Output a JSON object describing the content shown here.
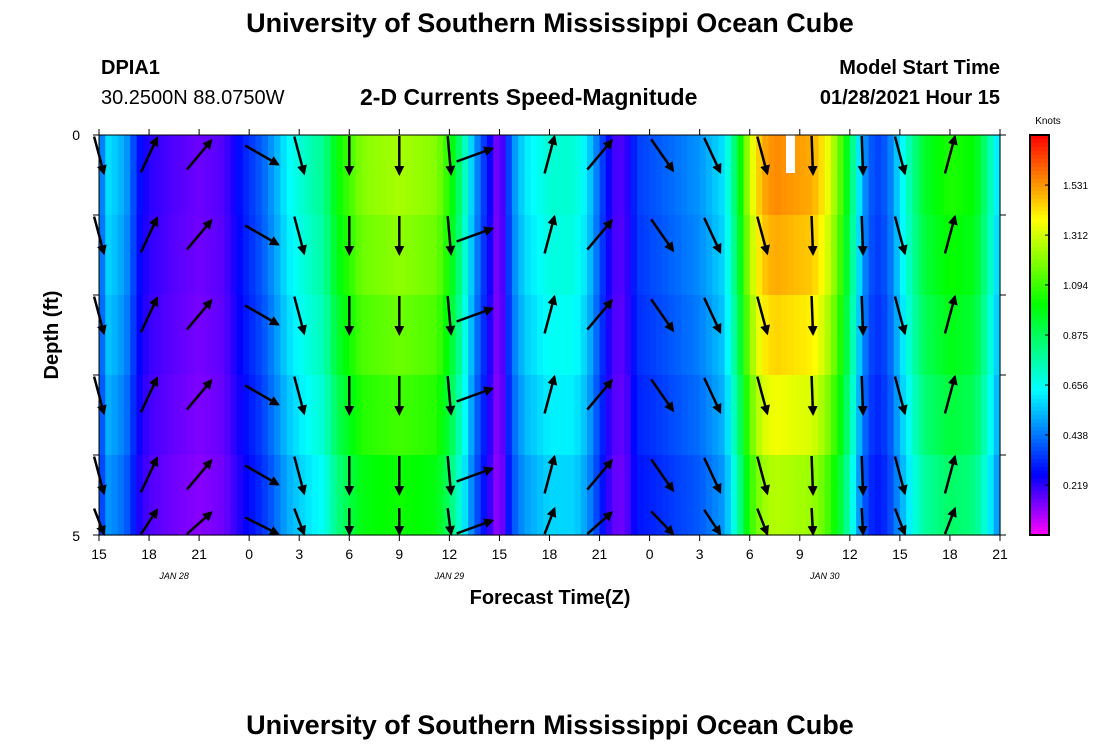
{
  "header": {
    "title_top": "University of Southern Mississippi Ocean Cube",
    "title_bottom": "University of Southern Mississippi Ocean Cube",
    "station_id": "DPIA1",
    "station_coords": "30.2500N 88.0750W",
    "model_label": "Model Start Time",
    "model_time": "01/28/2021 Hour 15"
  },
  "chart_data": {
    "type": "heatmap",
    "title": "2-D Currents Speed-Magnitude",
    "xlabel": "Forecast Time(Z)",
    "ylabel": "Depth (ft)",
    "x_hours": [
      0,
      72
    ],
    "ylim": [
      0,
      5
    ],
    "y_ticks": [
      "0",
      "5"
    ],
    "x_tick_labels": [
      "15",
      "18",
      "21",
      "0",
      "3",
      "6",
      "9",
      "12",
      "15",
      "18",
      "21",
      "0",
      "3",
      "6",
      "9",
      "12",
      "15",
      "18",
      "21"
    ],
    "date_labels": [
      {
        "text": "JAN 28",
        "hour": 6
      },
      {
        "text": "JAN 29",
        "hour": 28
      },
      {
        "text": "JAN 30",
        "hour": 58
      }
    ],
    "colorbar": {
      "title": "Knots",
      "range": [
        0,
        1.75
      ],
      "ticks": [
        1.531,
        1.312,
        1.094,
        0.875,
        0.656,
        0.438,
        0.219
      ],
      "tick_labels": [
        "1.531",
        "1.312",
        "1.094",
        "0.875",
        "0.656",
        "0.438",
        "0.219"
      ]
    },
    "speed_profile": [
      [
        0.0,
        0.3
      ],
      [
        0.5,
        0.6
      ],
      [
        1.5,
        0.55
      ],
      [
        2.5,
        0.45
      ],
      [
        3.0,
        0.3
      ],
      [
        4.0,
        0.22
      ],
      [
        6.0,
        0.18
      ],
      [
        8.0,
        0.15
      ],
      [
        10.0,
        0.18
      ],
      [
        11.5,
        0.3
      ],
      [
        13.0,
        0.4
      ],
      [
        14.0,
        0.5
      ],
      [
        15.0,
        0.62
      ],
      [
        16.5,
        0.72
      ],
      [
        18.0,
        0.8
      ],
      [
        19.0,
        1.0
      ],
      [
        21.0,
        1.2
      ],
      [
        24.0,
        1.25
      ],
      [
        27.0,
        1.2
      ],
      [
        28.0,
        1.05
      ],
      [
        29.0,
        0.8
      ],
      [
        30.0,
        0.5
      ],
      [
        31.0,
        0.3
      ],
      [
        32.0,
        0.1
      ],
      [
        33.0,
        0.45
      ],
      [
        34.0,
        0.6
      ],
      [
        36.0,
        0.7
      ],
      [
        38.0,
        0.7
      ],
      [
        39.0,
        0.6
      ],
      [
        40.0,
        0.4
      ],
      [
        41.0,
        0.2
      ],
      [
        42.0,
        0.18
      ],
      [
        43.0,
        0.35
      ],
      [
        45.0,
        0.4
      ],
      [
        48.0,
        0.48
      ],
      [
        50.0,
        0.6
      ],
      [
        51.0,
        0.9
      ],
      [
        52.0,
        1.3
      ],
      [
        53.0,
        1.5
      ],
      [
        54.0,
        1.55
      ],
      [
        57.0,
        1.5
      ],
      [
        58.0,
        1.4
      ],
      [
        59.0,
        1.2
      ],
      [
        60.0,
        0.9
      ],
      [
        61.0,
        0.5
      ],
      [
        62.0,
        0.35
      ],
      [
        63.0,
        0.4
      ],
      [
        64.0,
        0.6
      ],
      [
        65.0,
        0.8
      ],
      [
        66.0,
        0.95
      ],
      [
        68.0,
        1.05
      ],
      [
        70.0,
        1.0
      ],
      [
        71.0,
        0.8
      ],
      [
        72.0,
        0.55
      ]
    ],
    "depth_rows": 5,
    "depth_factors": [
      1.0,
      0.97,
      0.93,
      0.88,
      0.82
    ],
    "arrow_depths": [
      0.25,
      1.25,
      2.25,
      3.25,
      4.25,
      4.9
    ],
    "arrows": [
      {
        "hour": 0,
        "angle": 165
      },
      {
        "hour": 4,
        "angle": 25
      },
      {
        "hour": 8,
        "angle": 40
      },
      {
        "hour": 13,
        "angle": 120
      },
      {
        "hour": 16,
        "angle": 165
      },
      {
        "hour": 20,
        "angle": 180
      },
      {
        "hour": 24,
        "angle": 180
      },
      {
        "hour": 28,
        "angle": 175
      },
      {
        "hour": 30,
        "angle": 70
      },
      {
        "hour": 36,
        "angle": 15
      },
      {
        "hour": 40,
        "angle": 40
      },
      {
        "hour": 45,
        "angle": 145
      },
      {
        "hour": 49,
        "angle": 155
      },
      {
        "hour": 53,
        "angle": 165
      },
      {
        "hour": 57,
        "angle": 178
      },
      {
        "hour": 61,
        "angle": 178
      },
      {
        "hour": 64,
        "angle": 165
      },
      {
        "hour": 68,
        "angle": 15
      }
    ]
  }
}
